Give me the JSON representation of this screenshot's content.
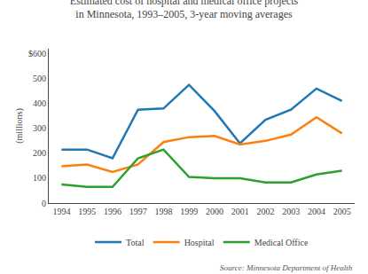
{
  "chart_data": {
    "type": "line",
    "title": "Estimated cost of hospital and medical office projects",
    "subtitle": "in Minnesota, 1993–2005, 3-year moving averages",
    "ylabel": "(millions)",
    "annotations": [
      "Source: Minnesota Department of Health"
    ],
    "x": [
      1994,
      1995,
      1996,
      1997,
      1998,
      1999,
      2000,
      2001,
      2002,
      2003,
      2004,
      2005
    ],
    "series": [
      {
        "name": "Total",
        "values": [
          215,
          215,
          180,
          375,
          380,
          475,
          370,
          240,
          335,
          375,
          460,
          410
        ]
      },
      {
        "name": "Hospital",
        "values": [
          148,
          155,
          125,
          155,
          245,
          265,
          270,
          235,
          250,
          275,
          345,
          280
        ]
      },
      {
        "name": "Medical Office",
        "values": [
          75,
          65,
          65,
          180,
          215,
          105,
          100,
          100,
          83,
          83,
          115,
          130
        ]
      }
    ],
    "xlim": [
      1993.5,
      2005.5
    ],
    "xticks": [
      1994,
      1995,
      1996,
      1997,
      1998,
      1999,
      2000,
      2001,
      2002,
      2003,
      2004,
      2005
    ],
    "ylim": [
      0,
      620
    ],
    "yticks": [
      0,
      100,
      200,
      300,
      400,
      500,
      {
        "value": 600,
        "label": "$600"
      }
    ],
    "grid": false,
    "legend": "bottom"
  }
}
